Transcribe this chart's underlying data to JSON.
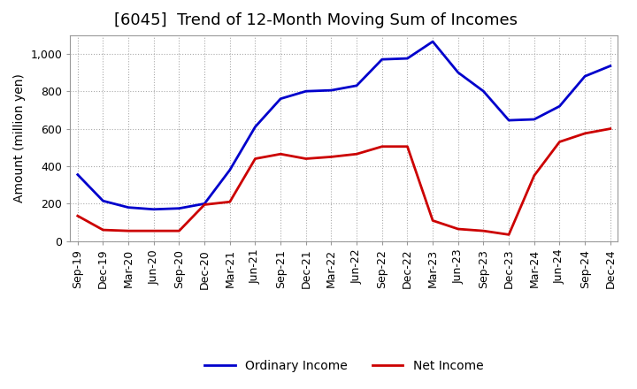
{
  "title": "[6045]  Trend of 12-Month Moving Sum of Incomes",
  "ylabel": "Amount (million yen)",
  "x_labels": [
    "Sep-19",
    "Dec-19",
    "Mar-20",
    "Jun-20",
    "Sep-20",
    "Dec-20",
    "Mar-21",
    "Jun-21",
    "Sep-21",
    "Dec-21",
    "Mar-22",
    "Jun-22",
    "Sep-22",
    "Dec-22",
    "Mar-23",
    "Jun-23",
    "Sep-23",
    "Dec-23",
    "Mar-24",
    "Jun-24",
    "Sep-24",
    "Dec-24"
  ],
  "ordinary_income": [
    355,
    215,
    180,
    170,
    175,
    200,
    380,
    610,
    760,
    800,
    805,
    830,
    970,
    975,
    1065,
    900,
    800,
    645,
    650,
    720,
    880,
    935
  ],
  "net_income": [
    135,
    60,
    55,
    55,
    55,
    195,
    210,
    440,
    465,
    440,
    450,
    465,
    505,
    505,
    110,
    65,
    55,
    35,
    350,
    530,
    575,
    600
  ],
  "ordinary_color": "#0000cc",
  "net_color": "#cc0000",
  "ylim_min": 0,
  "ylim_max": 1100,
  "yticks": [
    0,
    200,
    400,
    600,
    800,
    1000
  ],
  "ytick_labels": [
    "0",
    "200",
    "400",
    "600",
    "800",
    "1,000"
  ],
  "bg_color": "#ffffff",
  "plot_bg_color": "#ffffff",
  "grid_color": "#aaaaaa",
  "grid_linestyle": ":",
  "line_width": 2.0,
  "title_fontsize": 13,
  "title_fontweight": "normal",
  "legend_fontsize": 10,
  "tick_fontsize": 9,
  "ylabel_fontsize": 10
}
